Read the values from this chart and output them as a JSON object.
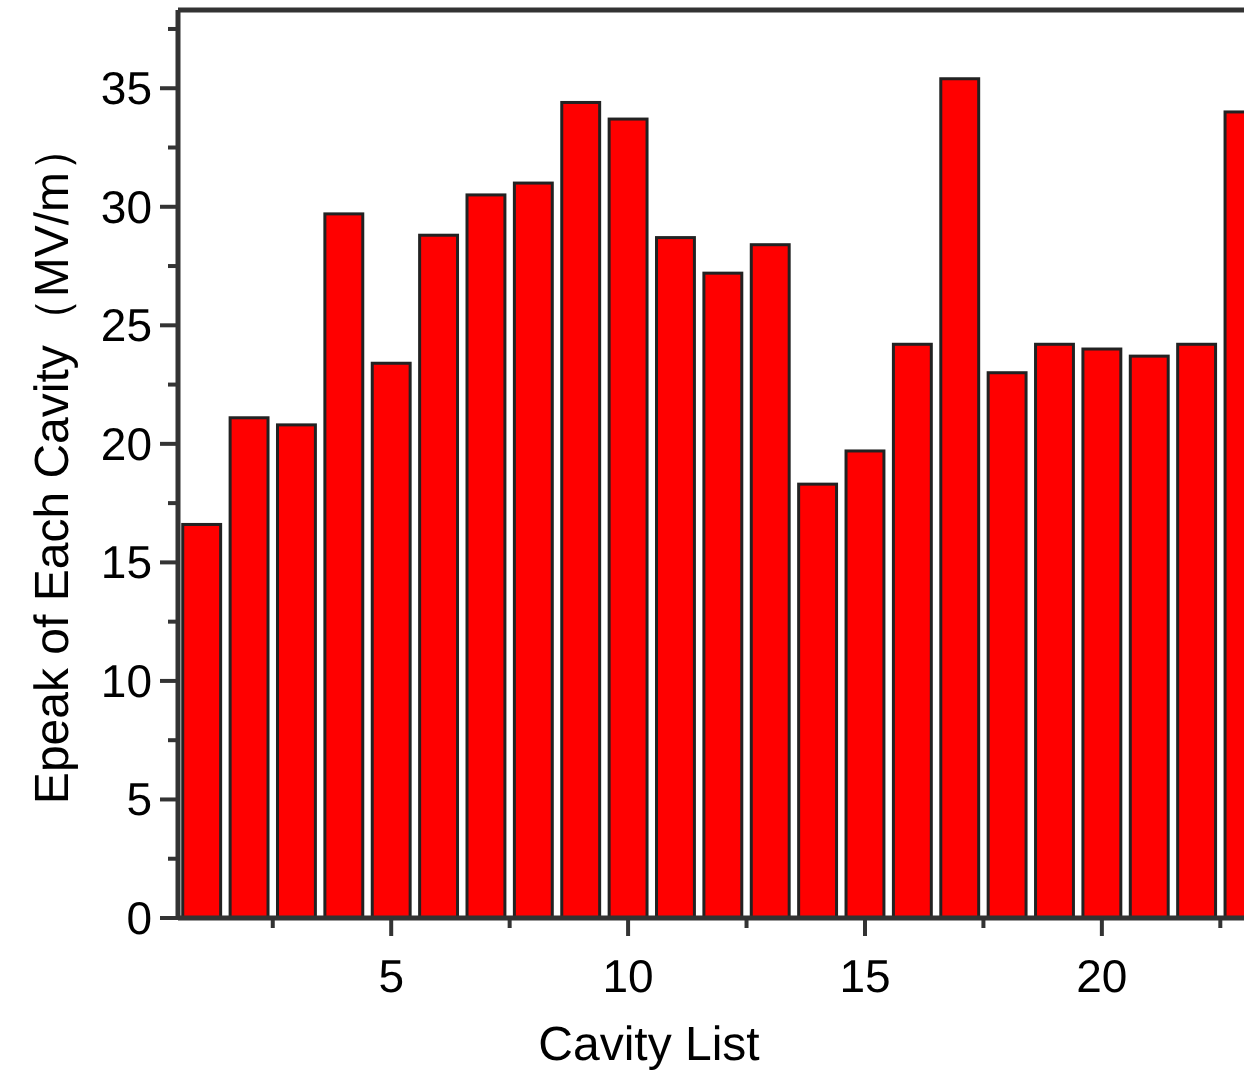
{
  "chart_data": {
    "type": "bar",
    "xlabel": "Cavity List",
    "ylabel": "Epeak of Each Cavity（MV/m）",
    "x": [
      1,
      2,
      3,
      4,
      5,
      6,
      7,
      8,
      9,
      10,
      11,
      12,
      13,
      14,
      15,
      16,
      17,
      18,
      19,
      20,
      21,
      22,
      23
    ],
    "values": [
      16.6,
      21.1,
      20.8,
      29.7,
      23.4,
      28.8,
      30.5,
      31.0,
      34.4,
      33.7,
      28.7,
      27.2,
      28.4,
      18.3,
      19.7,
      24.2,
      35.4,
      23.0,
      24.2,
      24.0,
      23.7,
      24.2,
      34.0
    ],
    "color": "#ff0000",
    "xlim": [
      0.5,
      23
    ],
    "xticks": [
      {
        "value": 2.5,
        "label": null
      },
      5,
      {
        "value": 7.5,
        "label": null
      },
      10,
      {
        "value": 12.5,
        "label": null
      },
      15,
      {
        "value": 17.5,
        "label": null
      },
      20,
      {
        "value": 22.5,
        "label": null
      }
    ],
    "ylim": [
      0,
      38.3
    ],
    "yticks": [
      0,
      {
        "value": 2.5,
        "label": null
      },
      5,
      {
        "value": 7.5,
        "label": null
      },
      10,
      {
        "value": 12.5,
        "label": null
      },
      15,
      {
        "value": 17.5,
        "label": null
      },
      20,
      {
        "value": 22.5,
        "label": null
      },
      25,
      {
        "value": 27.5,
        "label": null
      },
      30,
      {
        "value": 32.5,
        "label": null
      },
      35,
      {
        "value": 37.5,
        "label": null
      }
    ],
    "grid": false
  }
}
